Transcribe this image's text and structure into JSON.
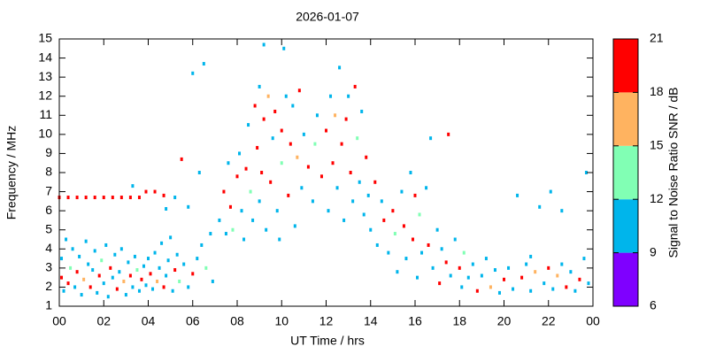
{
  "chart_data": {
    "type": "scatter",
    "title": "2026-01-07",
    "xlabel": "UT Time / hrs",
    "ylabel": "Frequency / MHz",
    "xlim": [
      0,
      24
    ],
    "xticks": [
      {
        "value": 0,
        "label": "00"
      },
      {
        "value": 2,
        "label": "02"
      },
      {
        "value": 4,
        "label": "04"
      },
      {
        "value": 6,
        "label": "06"
      },
      {
        "value": 8,
        "label": "08"
      },
      10,
      12,
      14,
      16,
      18,
      20,
      22,
      {
        "value": 24,
        "label": "00"
      }
    ],
    "ylim": [
      1,
      15
    ],
    "yticks": [
      1,
      2,
      3,
      4,
      5,
      6,
      7,
      8,
      9,
      10,
      11,
      12,
      13,
      14,
      15
    ],
    "colorbar": {
      "label": "Signal to Noise Ratio SNR / dB",
      "lim": [
        6,
        21
      ],
      "ticks": [
        6,
        9,
        12,
        15,
        18,
        21
      ],
      "colors": [
        "#7f00ff",
        "#00b5eb",
        "#81ffb4",
        "#ffb360",
        "#ff0000"
      ]
    },
    "x": [
      0.1,
      0.1,
      0.2,
      0.3,
      0.4,
      0.5,
      0.6,
      0.7,
      0.8,
      0.9,
      1.0,
      1.1,
      1.2,
      1.3,
      1.4,
      1.5,
      1.6,
      1.7,
      1.8,
      1.9,
      2.0,
      2.1,
      2.2,
      2.3,
      2.4,
      2.5,
      2.6,
      2.7,
      2.8,
      2.9,
      3.0,
      3.1,
      3.2,
      3.3,
      3.4,
      3.5,
      3.6,
      3.7,
      3.8,
      3.9,
      4.0,
      4.1,
      4.2,
      4.3,
      4.4,
      4.5,
      4.6,
      4.7,
      4.8,
      4.9,
      5.0,
      5.1,
      5.2,
      5.3,
      5.4,
      5.6,
      5.8,
      6.0,
      6.2,
      6.4,
      6.6,
      6.8,
      6.9,
      0.0,
      0.4,
      0.8,
      1.2,
      1.6,
      2.0,
      2.4,
      2.8,
      3.2,
      3.6,
      3.9,
      4.3,
      4.7,
      5.2,
      5.5,
      6.0,
      6.5,
      6.3,
      5.8,
      3.3,
      4.8,
      7.2,
      7.4,
      7.5,
      7.6,
      7.7,
      7.8,
      8.0,
      8.1,
      8.2,
      8.3,
      8.4,
      8.5,
      8.6,
      8.7,
      8.8,
      8.9,
      9.0,
      9.0,
      9.1,
      9.2,
      9.2,
      9.3,
      9.4,
      9.5,
      9.6,
      9.7,
      9.8,
      9.9,
      10.0,
      10.0,
      10.1,
      10.2,
      10.3,
      10.4,
      10.5,
      10.6,
      10.7,
      10.8,
      10.9,
      11.0,
      11.2,
      11.4,
      11.5,
      11.6,
      11.8,
      12.0,
      12.1,
      12.2,
      12.3,
      12.4,
      12.5,
      12.6,
      12.7,
      12.8,
      12.9,
      13.0,
      13.1,
      13.2,
      13.3,
      13.4,
      13.5,
      13.6,
      13.7,
      13.8,
      13.9,
      14.0,
      14.2,
      14.3,
      14.5,
      14.6,
      14.8,
      15.0,
      15.1,
      15.2,
      15.4,
      15.5,
      15.6,
      15.8,
      15.9,
      16.0,
      16.1,
      16.2,
      16.3,
      16.5,
      16.6,
      16.7,
      16.8,
      17.0,
      17.1,
      17.2,
      17.4,
      17.5,
      17.6,
      17.8,
      18.0,
      18.1,
      18.2,
      18.4,
      18.6,
      18.8,
      19.0,
      19.2,
      19.4,
      19.6,
      19.8,
      20.0,
      20.2,
      20.4,
      20.6,
      20.8,
      21.0,
      21.2,
      21.4,
      21.6,
      21.8,
      22.0,
      22.1,
      22.2,
      22.4,
      22.6,
      22.8,
      23.0,
      23.2,
      23.4,
      23.6,
      23.7,
      23.8,
      22.6,
      21.2
    ],
    "values": [
      2.5,
      3.5,
      1.8,
      4.5,
      2.2,
      3.0,
      4.0,
      2.0,
      2.8,
      3.6,
      1.6,
      2.4,
      4.4,
      3.2,
      2.0,
      2.9,
      3.9,
      1.7,
      2.6,
      3.4,
      2.2,
      4.2,
      1.5,
      3.0,
      2.5,
      3.7,
      1.9,
      2.8,
      4.0,
      2.3,
      1.6,
      3.3,
      2.6,
      2.0,
      3.6,
      2.9,
      1.8,
      2.4,
      3.1,
      2.1,
      3.5,
      2.7,
      1.9,
      3.8,
      2.3,
      3.0,
      4.3,
      2.0,
      2.6,
      3.4,
      4.6,
      1.8,
      2.9,
      3.7,
      2.3,
      3.2,
      2.0,
      2.7,
      3.5,
      4.2,
      3.0,
      4.8,
      2.3,
      6.7,
      6.7,
      6.7,
      6.7,
      6.7,
      6.7,
      6.7,
      6.7,
      6.7,
      6.7,
      7.0,
      7.0,
      6.8,
      6.7,
      8.7,
      13.2,
      13.7,
      8.0,
      6.2,
      7.3,
      6.1,
      5.5,
      7.0,
      4.8,
      8.5,
      6.2,
      5.0,
      7.8,
      9.0,
      6.0,
      4.5,
      8.2,
      10.5,
      7.0,
      5.5,
      11.5,
      9.3,
      12.5,
      6.5,
      8.0,
      14.7,
      10.8,
      5.0,
      12.0,
      7.5,
      9.8,
      11.2,
      6.0,
      4.5,
      10.2,
      8.5,
      14.5,
      12.0,
      6.8,
      9.5,
      11.5,
      5.2,
      8.8,
      12.3,
      7.2,
      10.0,
      8.3,
      6.5,
      9.5,
      11.0,
      7.8,
      10.2,
      6.0,
      12.0,
      8.5,
      11.0,
      7.2,
      13.5,
      9.5,
      5.5,
      10.8,
      12.0,
      8.0,
      6.5,
      12.5,
      9.8,
      7.5,
      11.2,
      5.8,
      8.8,
      6.8,
      5.0,
      7.5,
      4.2,
      6.5,
      5.5,
      3.8,
      6.0,
      4.8,
      2.8,
      7.0,
      5.2,
      3.5,
      8.0,
      4.5,
      6.8,
      2.5,
      5.8,
      3.8,
      7.2,
      4.2,
      9.8,
      3.0,
      5.0,
      2.2,
      4.0,
      3.3,
      10.0,
      2.6,
      4.5,
      3.0,
      2.0,
      3.8,
      2.5,
      3.2,
      1.8,
      2.6,
      3.5,
      2.0,
      2.9,
      1.7,
      2.4,
      3.0,
      1.9,
      6.8,
      2.5,
      3.2,
      1.8,
      2.8,
      6.2,
      2.2,
      3.0,
      7.0,
      1.9,
      2.6,
      3.2,
      2.0,
      2.8,
      1.8,
      2.4,
      3.5,
      8.0,
      2.2,
      6.0,
      3.6
    ],
    "snr": [
      19,
      10,
      10,
      10,
      19,
      13,
      10,
      10,
      19,
      10,
      10,
      16,
      10,
      10,
      19,
      10,
      10,
      10,
      19,
      13,
      10,
      10,
      10,
      19,
      10,
      10,
      19,
      10,
      10,
      16,
      10,
      10,
      19,
      10,
      10,
      13,
      10,
      19,
      10,
      10,
      10,
      19,
      10,
      10,
      16,
      10,
      10,
      19,
      10,
      10,
      10,
      10,
      19,
      10,
      13,
      10,
      10,
      19,
      10,
      10,
      13,
      10,
      10,
      19,
      19,
      19,
      19,
      19,
      19,
      19,
      19,
      19,
      19,
      19,
      19,
      19,
      10,
      19,
      10,
      10,
      10,
      10,
      10,
      10,
      10,
      19,
      10,
      10,
      19,
      13,
      19,
      10,
      10,
      10,
      19,
      10,
      13,
      10,
      19,
      19,
      10,
      10,
      19,
      10,
      19,
      10,
      16,
      19,
      10,
      19,
      10,
      10,
      19,
      13,
      10,
      10,
      19,
      19,
      10,
      10,
      16,
      19,
      10,
      10,
      19,
      10,
      13,
      10,
      19,
      19,
      10,
      10,
      19,
      16,
      10,
      10,
      19,
      10,
      19,
      10,
      19,
      10,
      19,
      13,
      10,
      10,
      10,
      19,
      10,
      10,
      19,
      10,
      10,
      19,
      10,
      19,
      13,
      10,
      10,
      19,
      10,
      10,
      19,
      19,
      10,
      13,
      10,
      10,
      19,
      10,
      10,
      10,
      19,
      10,
      19,
      19,
      10,
      10,
      19,
      10,
      13,
      10,
      10,
      19,
      10,
      10,
      16,
      10,
      10,
      19,
      10,
      10,
      10,
      19,
      10,
      10,
      16,
      10,
      10,
      19,
      10,
      10,
      16,
      10,
      19,
      10,
      10,
      19,
      10,
      10,
      10,
      10,
      10
    ]
  }
}
